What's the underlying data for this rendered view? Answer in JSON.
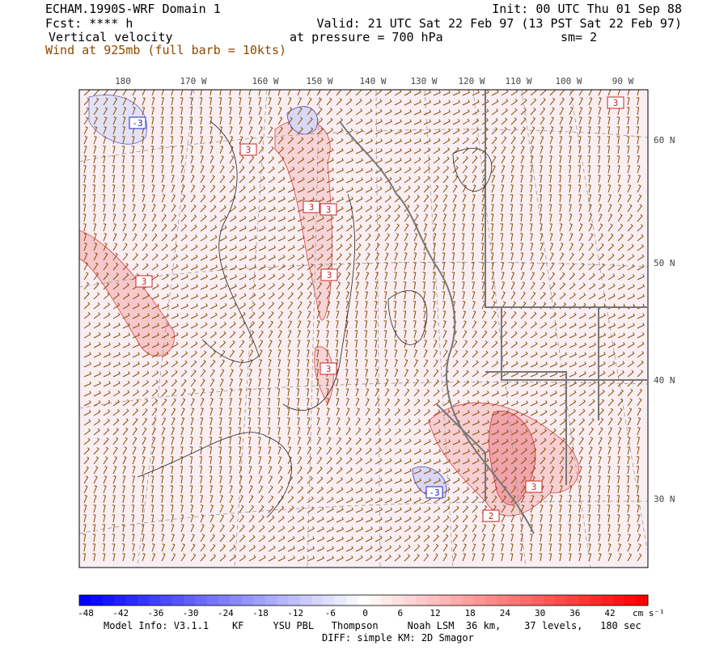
{
  "header": {
    "title": "ECHAM.1990S-WRF Domain 1",
    "forecast": "Fcst: **** h",
    "field": "Vertical velocity",
    "wind": "Wind at 925mb (full barb = 10kts)",
    "init": "Init: 00 UTC Thu 01 Sep 88",
    "valid": "Valid: 21 UTC Sat 22 Feb 97 (13 PST Sat 22 Feb 97)",
    "pressure": "at pressure =  700 hPa",
    "smoothing": "sm= 2"
  },
  "map": {
    "longitude_labels": [
      "180",
      "170 W",
      "160 W",
      "150 W",
      "140 W",
      "130 W",
      "120 W",
      "110 W",
      "100 W",
      "90 W"
    ],
    "latitude_labels": [
      "60 N",
      "50 N",
      "40 N",
      "30 N"
    ],
    "contour_labels": [
      "-3",
      "3",
      "3",
      "3",
      "3",
      "3",
      "3",
      "3",
      "3",
      "-3",
      "2"
    ]
  },
  "colorbar": {
    "labels": [
      -48,
      -42,
      -36,
      -30,
      -24,
      -18,
      -12,
      -6,
      0,
      6,
      12,
      18,
      24,
      30,
      36,
      42
    ],
    "unit": "cm s⁻¹"
  },
  "footer": {
    "model_info": "Model Info: V3.1.1    KF     YSU PBL   Thompson     Noah LSM  36 km,    37 levels,   180 sec",
    "diff": "DIFF: simple KM: 2D Smagor"
  }
}
